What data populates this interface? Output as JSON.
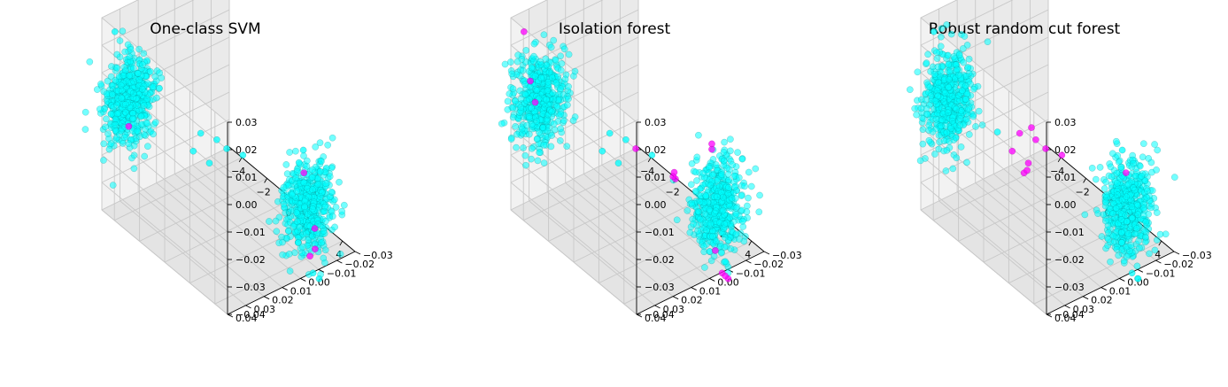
{
  "chart_data": [
    {
      "type": "scatter",
      "title": "One-class SVM",
      "zticks": [
        "0.03",
        "0.02",
        "0.01",
        "0.00",
        "−0.01",
        "−0.02",
        "−0.03",
        "−0.04"
      ],
      "yticks": [
        "0.04",
        "0.03",
        "0.02",
        "0.01",
        "0.00",
        "−0.01",
        "−0.02",
        "−0.03"
      ],
      "xticks": [
        "−4",
        "−2",
        "0",
        "2",
        "4"
      ],
      "zlim": [
        -0.04,
        0.03
      ],
      "ylim": [
        -0.03,
        0.04
      ],
      "xlim": [
        -5,
        5
      ],
      "grid": true,
      "series": [
        {
          "role": "inlier",
          "color": "#00ffff",
          "clusters": [
            {
              "x": -4.2,
              "y": 0.03,
              "z": 0.0,
              "sx": 0.5,
              "sy": 0.006,
              "sz": 0.008,
              "n": 520
            },
            {
              "x": 4.2,
              "y": -0.01,
              "z": -0.02,
              "sx": 0.5,
              "sy": 0.006,
              "sz": 0.008,
              "n": 520
            }
          ],
          "points": [
            {
              "x": -4.1,
              "y": 0.039,
              "z": 0.028
            },
            {
              "x": -0.9,
              "y": 0.014,
              "z": -0.005
            },
            {
              "x": -0.2,
              "y": 0.01,
              "z": -0.006
            },
            {
              "x": 0.3,
              "y": 0.008,
              "z": -0.008
            },
            {
              "x": -1.2,
              "y": 0.016,
              "z": -0.012
            },
            {
              "x": -0.5,
              "y": 0.012,
              "z": -0.015
            },
            {
              "x": 1.0,
              "y": 0.004,
              "z": -0.009
            },
            {
              "x": 3.4,
              "y": -0.018,
              "z": -0.05
            },
            {
              "x": 3.6,
              "y": -0.02,
              "z": -0.052
            },
            {
              "x": 4.8,
              "y": -0.003,
              "z": 0.005
            },
            {
              "x": 4.6,
              "y": -0.002,
              "z": 0.0
            }
          ]
        },
        {
          "role": "outlier",
          "color": "#ff00ff",
          "points": [
            {
              "x": 4.4,
              "y": -0.012,
              "z": -0.028
            },
            {
              "x": 4.0,
              "y": -0.015,
              "z": -0.038
            },
            {
              "x": 4.6,
              "y": -0.008,
              "z": -0.036
            },
            {
              "x": 4.7,
              "y": -0.004,
              "z": -0.004
            },
            {
              "x": -4.6,
              "y": 0.028,
              "z": -0.012
            }
          ]
        }
      ]
    },
    {
      "type": "scatter",
      "title": "Isolation forest",
      "zticks": [
        "0.03",
        "0.02",
        "0.01",
        "0.00",
        "−0.01",
        "−0.02",
        "−0.03",
        "−0.04"
      ],
      "yticks": [
        "0.04",
        "0.03",
        "0.02",
        "0.01",
        "0.00",
        "−0.01",
        "−0.02",
        "−0.03"
      ],
      "xticks": [
        "−4",
        "−2",
        "0",
        "2",
        "4"
      ],
      "zlim": [
        -0.04,
        0.03
      ],
      "ylim": [
        -0.03,
        0.04
      ],
      "xlim": [
        -5,
        5
      ],
      "grid": true,
      "series": [
        {
          "role": "inlier",
          "color": "#00ffff",
          "clusters": [
            {
              "x": -4.2,
              "y": 0.03,
              "z": 0.0,
              "sx": 0.5,
              "sy": 0.006,
              "sz": 0.008,
              "n": 520
            },
            {
              "x": 4.2,
              "y": -0.01,
              "z": -0.02,
              "sx": 0.5,
              "sy": 0.006,
              "sz": 0.008,
              "n": 520
            }
          ],
          "points": [
            {
              "x": -0.9,
              "y": 0.014,
              "z": -0.005
            },
            {
              "x": -0.2,
              "y": 0.01,
              "z": -0.006
            },
            {
              "x": -1.2,
              "y": 0.016,
              "z": -0.012
            },
            {
              "x": -0.5,
              "y": 0.012,
              "z": -0.015
            },
            {
              "x": 1.0,
              "y": 0.004,
              "z": -0.009
            },
            {
              "x": 3.8,
              "y": -0.017,
              "z": -0.044
            }
          ]
        },
        {
          "role": "outlier",
          "color": "#ff00ff",
          "points": [
            {
              "x": -4.1,
              "y": 0.039,
              "z": 0.028
            },
            {
              "x": 0.3,
              "y": 0.008,
              "z": -0.008
            },
            {
              "x": 2.2,
              "y": 0.0,
              "z": -0.012
            },
            {
              "x": 2.3,
              "y": 0.0,
              "z": -0.014
            },
            {
              "x": 2.25,
              "y": 0.001,
              "z": -0.013
            },
            {
              "x": 4.9,
              "y": -0.002,
              "z": 0.008
            },
            {
              "x": 4.9,
              "y": -0.002,
              "z": 0.006
            },
            {
              "x": 3.4,
              "y": -0.018,
              "z": -0.05
            },
            {
              "x": 3.6,
              "y": -0.02,
              "z": -0.052
            },
            {
              "x": 3.5,
              "y": -0.019,
              "z": -0.051
            },
            {
              "x": 3.0,
              "y": -0.017,
              "z": -0.043
            },
            {
              "x": -4.9,
              "y": 0.03,
              "z": 0.004
            },
            {
              "x": -4.8,
              "y": 0.028,
              "z": -0.004
            }
          ]
        }
      ]
    },
    {
      "type": "scatter",
      "title": "Robust random cut forest",
      "zticks": [
        "0.03",
        "0.02",
        "0.01",
        "0.00",
        "−0.01",
        "−0.02",
        "−0.03",
        "−0.04"
      ],
      "yticks": [
        "0.04",
        "0.03",
        "0.02",
        "0.01",
        "0.00",
        "−0.01",
        "−0.02",
        "−0.03"
      ],
      "xticks": [
        "−4",
        "−2",
        "0",
        "2",
        "4"
      ],
      "zlim": [
        -0.04,
        0.03
      ],
      "ylim": [
        -0.03,
        0.04
      ],
      "xlim": [
        -5,
        5
      ],
      "grid": true,
      "series": [
        {
          "role": "inlier",
          "color": "#00ffff",
          "clusters": [
            {
              "x": -4.2,
              "y": 0.03,
              "z": 0.0,
              "sx": 0.5,
              "sy": 0.006,
              "sz": 0.008,
              "n": 520
            },
            {
              "x": 4.2,
              "y": -0.01,
              "z": -0.02,
              "sx": 0.5,
              "sy": 0.006,
              "sz": 0.008,
              "n": 520
            }
          ],
          "points": [
            {
              "x": -4.1,
              "y": 0.039,
              "z": 0.028
            },
            {
              "x": 3.4,
              "y": -0.018,
              "z": -0.05
            },
            {
              "x": 3.6,
              "y": -0.02,
              "z": -0.052
            },
            {
              "x": -1.8,
              "y": 0.02,
              "z": -0.006
            },
            {
              "x": 4.8,
              "y": -0.003,
              "z": 0.005
            }
          ]
        },
        {
          "role": "outlier",
          "color": "#ff00ff",
          "points": [
            {
              "x": -0.9,
              "y": 0.014,
              "z": -0.005
            },
            {
              "x": -0.2,
              "y": 0.01,
              "z": -0.006
            },
            {
              "x": 0.3,
              "y": 0.008,
              "z": -0.008
            },
            {
              "x": -1.2,
              "y": 0.016,
              "z": -0.012
            },
            {
              "x": -0.5,
              "y": 0.012,
              "z": -0.015
            },
            {
              "x": -0.7,
              "y": 0.013,
              "z": -0.019
            },
            {
              "x": -0.6,
              "y": 0.012,
              "z": -0.018
            },
            {
              "x": 1.0,
              "y": 0.004,
              "z": -0.009
            },
            {
              "x": -0.4,
              "y": 0.011,
              "z": -0.002
            },
            {
              "x": 4.95,
              "y": -0.004,
              "z": -0.003
            }
          ]
        }
      ]
    }
  ]
}
